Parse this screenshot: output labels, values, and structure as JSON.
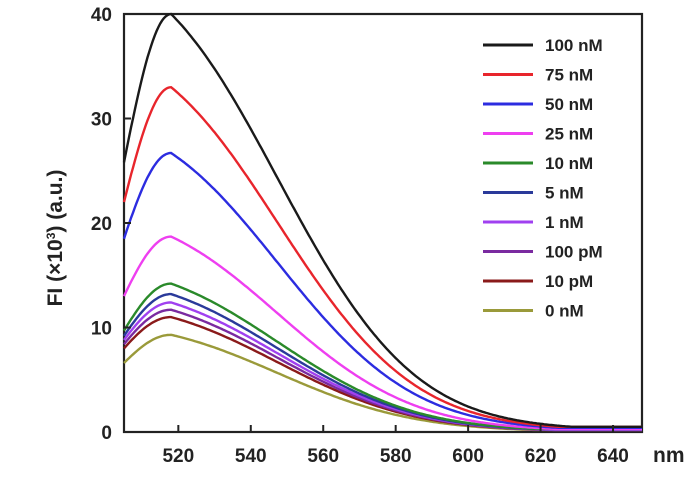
{
  "chart_data": {
    "type": "line",
    "xlabel": "nm",
    "ylabel_main": "FI (×10",
    "ylabel_sup": "3",
    "ylabel_tail": ") (a.u.)",
    "xlim": [
      505,
      648
    ],
    "ylim": [
      0,
      40
    ],
    "xticks": [
      520,
      540,
      560,
      580,
      600,
      620,
      640
    ],
    "yticks": [
      0,
      10,
      20,
      30,
      40
    ],
    "legend_position": "top-right",
    "peak_wavelength": 518,
    "series": [
      {
        "name": "100 nM",
        "color": "#1a1a1a",
        "peak": 40.0,
        "start": 25.8,
        "tail": 0.5
      },
      {
        "name": "75 nM",
        "color": "#e8252c",
        "peak": 33.0,
        "start": 22.0,
        "tail": 0.5
      },
      {
        "name": "50 nM",
        "color": "#2c2ce0",
        "peak": 26.7,
        "start": 18.5,
        "tail": 0.4
      },
      {
        "name": "25 nM",
        "color": "#ee3ff0",
        "peak": 18.7,
        "start": 13.0,
        "tail": 0.3
      },
      {
        "name": "10 nM",
        "color": "#2a8a2a",
        "peak": 14.2,
        "start": 9.7,
        "tail": 0.3
      },
      {
        "name": "5 nM",
        "color": "#2a3a9a",
        "peak": 13.2,
        "start": 9.2,
        "tail": 0.3
      },
      {
        "name": "1 nM",
        "color": "#a040f0",
        "peak": 12.4,
        "start": 8.8,
        "tail": 0.2
      },
      {
        "name": "100 pM",
        "color": "#7a2aa0",
        "peak": 11.7,
        "start": 8.4,
        "tail": 0.2
      },
      {
        "name": "10 pM",
        "color": "#8a1a1a",
        "peak": 11.0,
        "start": 8.0,
        "tail": 0.2
      },
      {
        "name": "0 nM",
        "color": "#9a9a3a",
        "peak": 9.3,
        "start": 6.6,
        "tail": 0.2
      }
    ]
  }
}
